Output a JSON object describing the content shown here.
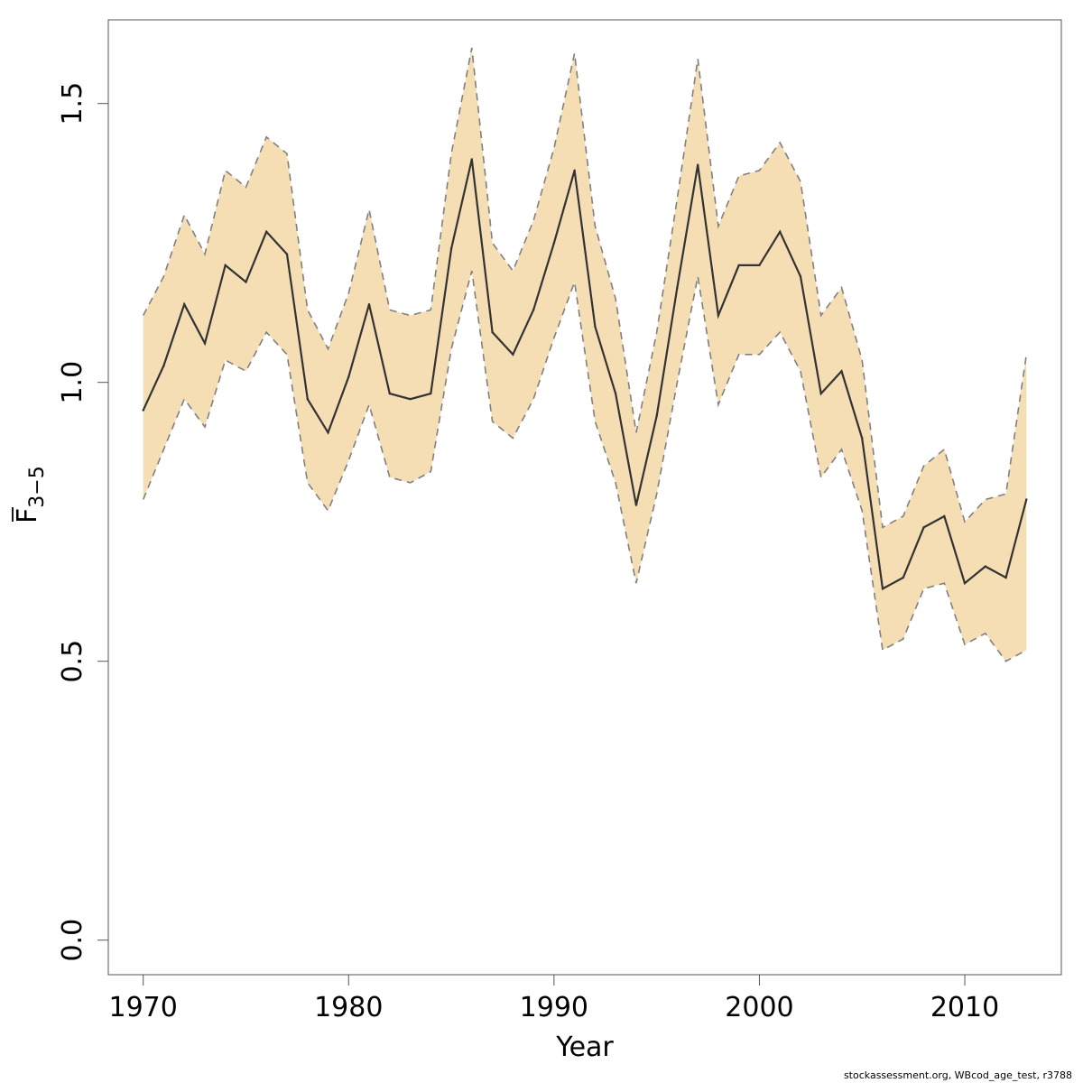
{
  "chart_data": {
    "type": "line",
    "xlabel": "Year",
    "ylabel_main": "F",
    "ylabel_sub": "3−5",
    "x_ticks": [
      1970,
      1980,
      1990,
      2000,
      2010
    ],
    "y_ticks": [
      "0.0",
      "0.5",
      "1.0",
      "1.5"
    ],
    "xlim": [
      1968.3,
      2014.7
    ],
    "ylim": [
      -0.062,
      1.65
    ],
    "grid": false,
    "colors": {
      "band": "#f5deb3",
      "band_edge": "#808080",
      "line": "#333333",
      "frame": "#555555"
    },
    "x": [
      1970,
      1971,
      1972,
      1973,
      1974,
      1975,
      1976,
      1977,
      1978,
      1979,
      1980,
      1981,
      1982,
      1983,
      1984,
      1985,
      1986,
      1987,
      1988,
      1989,
      1990,
      1991,
      1992,
      1993,
      1994,
      1995,
      1996,
      1997,
      1998,
      1999,
      2000,
      2001,
      2002,
      2003,
      2004,
      2005,
      2006,
      2007,
      2008,
      2009,
      2010,
      2011,
      2012,
      2013
    ],
    "series": [
      {
        "values": [
          0.95,
          1.03,
          1.14,
          1.07,
          1.21,
          1.18,
          1.27,
          1.23,
          0.97,
          0.91,
          1.01,
          1.14,
          0.98,
          0.97,
          0.98,
          1.24,
          1.4,
          1.09,
          1.05,
          1.13,
          1.25,
          1.38,
          1.1,
          0.98,
          0.78,
          0.94,
          1.17,
          1.39,
          1.12,
          1.21,
          1.21,
          1.27,
          1.19,
          0.98,
          1.02,
          0.9,
          0.63,
          0.65,
          0.74,
          0.76,
          0.64,
          0.67,
          0.65,
          0.79
        ]
      },
      {
        "values": [
          0.79,
          0.88,
          0.97,
          0.92,
          1.04,
          1.02,
          1.09,
          1.05,
          0.82,
          0.77,
          0.86,
          0.96,
          0.83,
          0.82,
          0.84,
          1.06,
          1.2,
          0.93,
          0.9,
          0.97,
          1.08,
          1.18,
          0.93,
          0.82,
          0.64,
          0.8,
          1.0,
          1.19,
          0.96,
          1.05,
          1.05,
          1.09,
          1.02,
          0.83,
          0.88,
          0.77,
          0.52,
          0.54,
          0.63,
          0.64,
          0.53,
          0.55,
          0.5,
          0.52
        ]
      },
      {
        "values": [
          1.12,
          1.19,
          1.3,
          1.23,
          1.38,
          1.35,
          1.44,
          1.41,
          1.13,
          1.06,
          1.16,
          1.31,
          1.13,
          1.12,
          1.13,
          1.41,
          1.6,
          1.25,
          1.2,
          1.29,
          1.42,
          1.59,
          1.28,
          1.15,
          0.91,
          1.09,
          1.33,
          1.58,
          1.28,
          1.37,
          1.38,
          1.43,
          1.36,
          1.12,
          1.17,
          1.04,
          0.74,
          0.76,
          0.85,
          0.88,
          0.75,
          0.79,
          0.8,
          1.05
        ]
      }
    ]
  },
  "footer_text": "stockassessment.org, WBcod_age_test, r3788"
}
